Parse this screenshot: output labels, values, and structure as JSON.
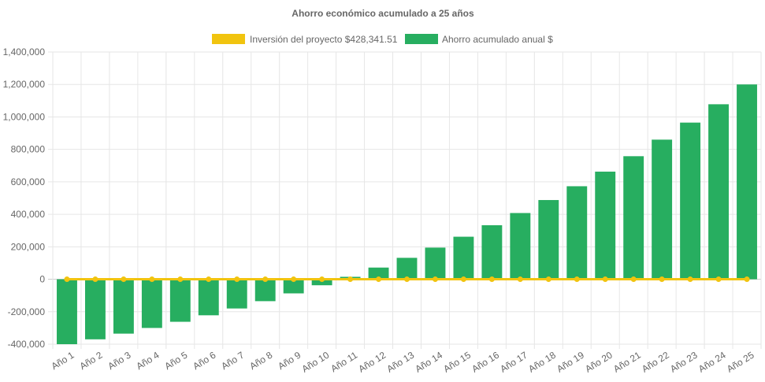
{
  "chart_data": {
    "type": "bar",
    "title": "Ahorro económico acumulado a 25 años",
    "legend_placement": "top-center",
    "grid": true,
    "categories": [
      "Año 1",
      "Año 2",
      "Año 3",
      "Año 4",
      "Año 5",
      "Año 6",
      "Año 7",
      "Año 8",
      "Año 9",
      "Año 10",
      "Año 11",
      "Año 12",
      "Año 13",
      "Año 14",
      "Año 15",
      "Año 16",
      "Año 17",
      "Año 18",
      "Año 19",
      "Año 20",
      "Año 21",
      "Año 22",
      "Año 23",
      "Año 24",
      "Año 25"
    ],
    "ylim": [
      -400000,
      1400000
    ],
    "yticks": [
      -400000,
      -200000,
      0,
      200000,
      400000,
      600000,
      800000,
      1000000,
      1200000,
      1400000
    ],
    "ytick_labels": [
      "-400,000",
      "-200,000",
      "0",
      "200,000",
      "400,000",
      "600,000",
      "800,000",
      "1,000,000",
      "1,200,000",
      "1,400,000"
    ],
    "series": [
      {
        "name": "Inversión del proyecto $428,341.51",
        "type": "line",
        "color": "#f1c40f",
        "values": [
          0,
          0,
          0,
          0,
          0,
          0,
          0,
          0,
          0,
          0,
          0,
          0,
          0,
          0,
          0,
          0,
          0,
          0,
          0,
          0,
          0,
          0,
          0,
          0,
          0
        ]
      },
      {
        "name": "Ahorro acumulado anual $",
        "type": "bar",
        "color": "#27ae60",
        "values": [
          -400000,
          -370000,
          -335000,
          -300000,
          -262000,
          -222000,
          -180000,
          -135000,
          -87000,
          -37000,
          15000,
          72000,
          132000,
          195000,
          262000,
          333000,
          408000,
          488000,
          573000,
          663000,
          758000,
          860000,
          965000,
          1078000,
          1200000
        ]
      }
    ]
  }
}
